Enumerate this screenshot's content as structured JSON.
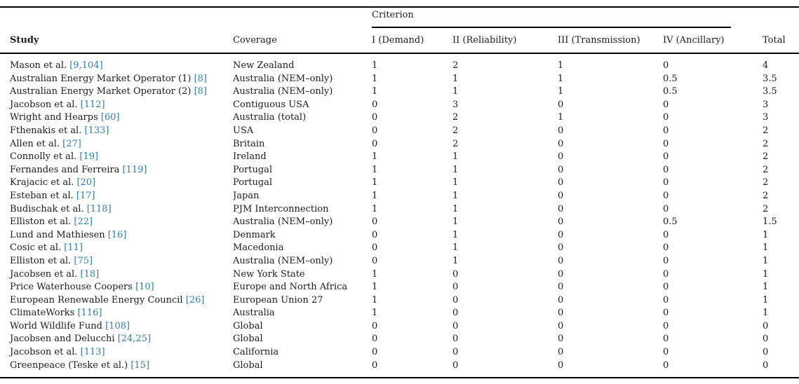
{
  "table": {
    "criterion_group_label": "Criterion",
    "columns": {
      "study": "Study",
      "coverage": "Coverage",
      "criteria": [
        "I (Demand)",
        "II (Reliability)",
        "III (Transmission)",
        "IV (Ancillary)"
      ],
      "total": "Total"
    },
    "colors": {
      "citation_link": "#2e7fa3",
      "text": "#1b1b1b",
      "rule": "#000000"
    },
    "rows": [
      {
        "study": "Mason et al.",
        "ref": "[9,104]",
        "coverage": "New Zealand",
        "scores": [
          "1",
          "2",
          "1",
          "0"
        ],
        "total": "4"
      },
      {
        "study": "Australian Energy Market Operator (1)",
        "ref": "[8]",
        "coverage": "Australia (NEM–only)",
        "scores": [
          "1",
          "1",
          "1",
          "0.5"
        ],
        "total": "3.5"
      },
      {
        "study": "Australian Energy Market Operator (2)",
        "ref": "[8]",
        "coverage": "Australia (NEM–only)",
        "scores": [
          "1",
          "1",
          "1",
          "0.5"
        ],
        "total": "3.5"
      },
      {
        "study": "Jacobson et al.",
        "ref": "[112]",
        "coverage": "Contiguous USA",
        "scores": [
          "0",
          "3",
          "0",
          "0"
        ],
        "total": "3"
      },
      {
        "study": "Wright and Hearps",
        "ref": "[60]",
        "coverage": "Australia (total)",
        "scores": [
          "0",
          "2",
          "1",
          "0"
        ],
        "total": "3"
      },
      {
        "study": "Fthenakis et al.",
        "ref": "[133]",
        "coverage": "USA",
        "scores": [
          "0",
          "2",
          "0",
          "0"
        ],
        "total": "2"
      },
      {
        "study": "Allen et al.",
        "ref": "[27]",
        "coverage": "Britain",
        "scores": [
          "0",
          "2",
          "0",
          "0"
        ],
        "total": "2"
      },
      {
        "study": "Connolly et al.",
        "ref": "[19]",
        "coverage": "Ireland",
        "scores": [
          "1",
          "1",
          "0",
          "0"
        ],
        "total": "2"
      },
      {
        "study": "Fernandes and Ferreira",
        "ref": "[119]",
        "coverage": "Portugal",
        "scores": [
          "1",
          "1",
          "0",
          "0"
        ],
        "total": "2"
      },
      {
        "study": "Krajacic et al.",
        "ref": "[20]",
        "coverage": "Portugal",
        "scores": [
          "1",
          "1",
          "0",
          "0"
        ],
        "total": "2"
      },
      {
        "study": "Esteban et al.",
        "ref": "[17]",
        "coverage": "Japan",
        "scores": [
          "1",
          "1",
          "0",
          "0"
        ],
        "total": "2"
      },
      {
        "study": "Budischak et al.",
        "ref": "[118]",
        "coverage": "PJM Interconnection",
        "scores": [
          "1",
          "1",
          "0",
          "0"
        ],
        "total": "2"
      },
      {
        "study": "Elliston et al.",
        "ref": "[22]",
        "coverage": "Australia (NEM–only)",
        "scores": [
          "0",
          "1",
          "0",
          "0.5"
        ],
        "total": "1.5"
      },
      {
        "study": "Lund and Mathiesen",
        "ref": "[16]",
        "coverage": "Denmark",
        "scores": [
          "0",
          "1",
          "0",
          "0"
        ],
        "total": "1"
      },
      {
        "study": "Cosic et al.",
        "ref": "[11]",
        "coverage": "Macedonia",
        "scores": [
          "0",
          "1",
          "0",
          "0"
        ],
        "total": "1"
      },
      {
        "study": "Elliston et al.",
        "ref": "[75]",
        "coverage": "Australia (NEM–only)",
        "scores": [
          "0",
          "1",
          "0",
          "0"
        ],
        "total": "1"
      },
      {
        "study": "Jacobsen et al.",
        "ref": "[18]",
        "coverage": "New York State",
        "scores": [
          "1",
          "0",
          "0",
          "0"
        ],
        "total": "1"
      },
      {
        "study": "Price Waterhouse Coopers",
        "ref": "[10]",
        "coverage": "Europe and North Africa",
        "scores": [
          "1",
          "0",
          "0",
          "0"
        ],
        "total": "1"
      },
      {
        "study": "European Renewable Energy Council",
        "ref": "[26]",
        "coverage": "European Union 27",
        "scores": [
          "1",
          "0",
          "0",
          "0"
        ],
        "total": "1"
      },
      {
        "study": "ClimateWorks",
        "ref": "[116]",
        "coverage": "Australia",
        "scores": [
          "1",
          "0",
          "0",
          "0"
        ],
        "total": "1"
      },
      {
        "study": "World Wildlife Fund",
        "ref": "[108]",
        "coverage": "Global",
        "scores": [
          "0",
          "0",
          "0",
          "0"
        ],
        "total": "0"
      },
      {
        "study": "Jacobsen and Delucchi",
        "ref": "[24,25]",
        "coverage": "Global",
        "scores": [
          "0",
          "0",
          "0",
          "0"
        ],
        "total": "0"
      },
      {
        "study": "Jacobson et al.",
        "ref": "[113]",
        "coverage": "California",
        "scores": [
          "0",
          "0",
          "0",
          "0"
        ],
        "total": "0"
      },
      {
        "study": "Greenpeace (Teske et al.)",
        "ref": "[15]",
        "coverage": "Global",
        "scores": [
          "0",
          "0",
          "0",
          "0"
        ],
        "total": "0"
      }
    ]
  }
}
